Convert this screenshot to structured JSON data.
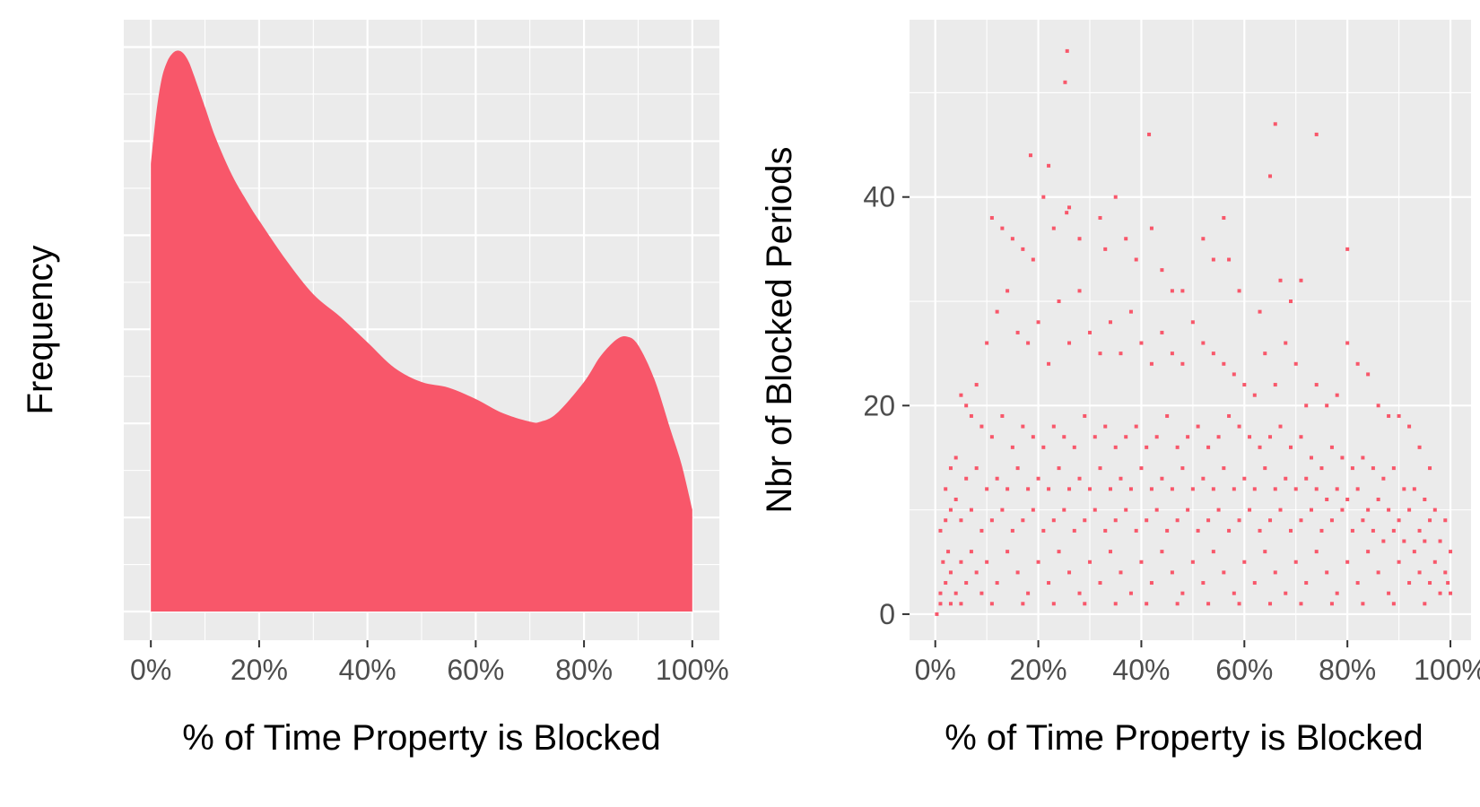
{
  "chart_data": [
    {
      "type": "area",
      "chart_kind": "density",
      "xlabel": "% of Time Property is Blocked",
      "ylabel": "Frequency",
      "xlim": [
        0,
        100
      ],
      "ylim": [
        0,
        1
      ],
      "grid": true,
      "y_tick_labels_shown": false,
      "x_ticks": [
        0,
        20,
        40,
        60,
        80,
        100
      ],
      "x_tick_labels": [
        "0%",
        "20%",
        "40%",
        "60%",
        "80%",
        "100%"
      ],
      "fill_color": "#F8576A",
      "panel_color": "#EBEBEB",
      "x": [
        0,
        1,
        2,
        3,
        4,
        5,
        6,
        7,
        8,
        10,
        12,
        15,
        18,
        20,
        25,
        30,
        35,
        40,
        45,
        50,
        55,
        60,
        65,
        70,
        72,
        75,
        80,
        83,
        86,
        88,
        90,
        93,
        96,
        98,
        100
      ],
      "y": [
        0.79,
        0.88,
        0.94,
        0.97,
        0.985,
        0.99,
        0.985,
        0.97,
        0.945,
        0.89,
        0.835,
        0.77,
        0.72,
        0.69,
        0.62,
        0.56,
        0.52,
        0.475,
        0.43,
        0.405,
        0.395,
        0.375,
        0.35,
        0.335,
        0.335,
        0.35,
        0.405,
        0.45,
        0.48,
        0.485,
        0.47,
        0.41,
        0.32,
        0.26,
        0.18
      ]
    },
    {
      "type": "scatter",
      "xlabel": "% of Time Property is Blocked",
      "ylabel": "Nbr of Blocked Periods",
      "xlim": [
        -5,
        104
      ],
      "ylim": [
        -2.5,
        57
      ],
      "grid": true,
      "x_ticks": [
        0,
        20,
        40,
        60,
        80,
        100
      ],
      "x_tick_labels": [
        "0%",
        "20%",
        "40%",
        "60%",
        "80%",
        "100%"
      ],
      "y_ticks": [
        0,
        20,
        40
      ],
      "y_tick_labels": [
        "0",
        "20",
        "40"
      ],
      "point_color": "#F8576A",
      "panel_color": "#EBEBEB",
      "points": [
        [
          0.3,
          0
        ],
        [
          25.6,
          54
        ],
        [
          25.2,
          51
        ],
        [
          22,
          43
        ],
        [
          18.5,
          44
        ],
        [
          21,
          40
        ],
        [
          26,
          39
        ],
        [
          25.5,
          38.5
        ],
        [
          35,
          40
        ],
        [
          41.5,
          46
        ],
        [
          65,
          42
        ],
        [
          66,
          47
        ],
        [
          74,
          46
        ],
        [
          80,
          35
        ],
        [
          11,
          38
        ],
        [
          13,
          37
        ],
        [
          15,
          36
        ],
        [
          17,
          35
        ],
        [
          19,
          34
        ],
        [
          23,
          37
        ],
        [
          28,
          36
        ],
        [
          32,
          38
        ],
        [
          33,
          35
        ],
        [
          37,
          36
        ],
        [
          39,
          34
        ],
        [
          42,
          37
        ],
        [
          44,
          33
        ],
        [
          46,
          31
        ],
        [
          48,
          31
        ],
        [
          52,
          36
        ],
        [
          54,
          34
        ],
        [
          56,
          38
        ],
        [
          57,
          34
        ],
        [
          59,
          31
        ],
        [
          63,
          29
        ],
        [
          67,
          32
        ],
        [
          69,
          30
        ],
        [
          71,
          32
        ],
        [
          10,
          26
        ],
        [
          12,
          29
        ],
        [
          14,
          31
        ],
        [
          16,
          27
        ],
        [
          18,
          26
        ],
        [
          20,
          28
        ],
        [
          22,
          24
        ],
        [
          24,
          30
        ],
        [
          26,
          26
        ],
        [
          28,
          31
        ],
        [
          30,
          27
        ],
        [
          32,
          25
        ],
        [
          34,
          28
        ],
        [
          36,
          25
        ],
        [
          38,
          29
        ],
        [
          40,
          26
        ],
        [
          42,
          24
        ],
        [
          44,
          27
        ],
        [
          46,
          25
        ],
        [
          48,
          24
        ],
        [
          50,
          28
        ],
        [
          52,
          26
        ],
        [
          54,
          25
        ],
        [
          56,
          24
        ],
        [
          58,
          23
        ],
        [
          60,
          22
        ],
        [
          62,
          21
        ],
        [
          64,
          25
        ],
        [
          66,
          22
        ],
        [
          68,
          26
        ],
        [
          70,
          24
        ],
        [
          72,
          20
        ],
        [
          74,
          22
        ],
        [
          76,
          20
        ],
        [
          78,
          21
        ],
        [
          80,
          26
        ],
        [
          82,
          24
        ],
        [
          84,
          23
        ],
        [
          86,
          20
        ],
        [
          88,
          19
        ],
        [
          90,
          19
        ],
        [
          92,
          18
        ],
        [
          94,
          16
        ],
        [
          96,
          14
        ],
        [
          5,
          21
        ],
        [
          6,
          20
        ],
        [
          7,
          19
        ],
        [
          8,
          22
        ],
        [
          9,
          18
        ],
        [
          11,
          17
        ],
        [
          13,
          19
        ],
        [
          15,
          16
        ],
        [
          17,
          18
        ],
        [
          19,
          17
        ],
        [
          21,
          16
        ],
        [
          23,
          18
        ],
        [
          25,
          17
        ],
        [
          27,
          16
        ],
        [
          29,
          19
        ],
        [
          31,
          17
        ],
        [
          33,
          18
        ],
        [
          35,
          16
        ],
        [
          37,
          17
        ],
        [
          39,
          18
        ],
        [
          41,
          16
        ],
        [
          43,
          17
        ],
        [
          45,
          19
        ],
        [
          47,
          16
        ],
        [
          49,
          17
        ],
        [
          51,
          18
        ],
        [
          53,
          16
        ],
        [
          55,
          17
        ],
        [
          57,
          19
        ],
        [
          59,
          18
        ],
        [
          61,
          17
        ],
        [
          63,
          16
        ],
        [
          65,
          17
        ],
        [
          67,
          18
        ],
        [
          69,
          16
        ],
        [
          71,
          17
        ],
        [
          73,
          15
        ],
        [
          75,
          14
        ],
        [
          77,
          16
        ],
        [
          79,
          15
        ],
        [
          81,
          14
        ],
        [
          83,
          15
        ],
        [
          85,
          14
        ],
        [
          87,
          13
        ],
        [
          89,
          14
        ],
        [
          91,
          12
        ],
        [
          93,
          12
        ],
        [
          95,
          11
        ],
        [
          97,
          10
        ],
        [
          99,
          9
        ],
        [
          2,
          12
        ],
        [
          3,
          14
        ],
        [
          4,
          15
        ],
        [
          6,
          13
        ],
        [
          8,
          14
        ],
        [
          10,
          12
        ],
        [
          12,
          13
        ],
        [
          14,
          12
        ],
        [
          16,
          14
        ],
        [
          18,
          12
        ],
        [
          20,
          13
        ],
        [
          22,
          12
        ],
        [
          24,
          14
        ],
        [
          26,
          12
        ],
        [
          28,
          13
        ],
        [
          30,
          12
        ],
        [
          32,
          14
        ],
        [
          34,
          12
        ],
        [
          36,
          13
        ],
        [
          38,
          12
        ],
        [
          40,
          14
        ],
        [
          42,
          12
        ],
        [
          44,
          13
        ],
        [
          46,
          12
        ],
        [
          48,
          14
        ],
        [
          50,
          12
        ],
        [
          52,
          13
        ],
        [
          54,
          12
        ],
        [
          56,
          14
        ],
        [
          58,
          12
        ],
        [
          60,
          13
        ],
        [
          62,
          12
        ],
        [
          64,
          14
        ],
        [
          66,
          12
        ],
        [
          68,
          13
        ],
        [
          70,
          12
        ],
        [
          72,
          13
        ],
        [
          74,
          12
        ],
        [
          76,
          11
        ],
        [
          78,
          12
        ],
        [
          80,
          11
        ],
        [
          82,
          12
        ],
        [
          84,
          10
        ],
        [
          86,
          11
        ],
        [
          88,
          10
        ],
        [
          90,
          9
        ],
        [
          92,
          10
        ],
        [
          94,
          8
        ],
        [
          96,
          9
        ],
        [
          98,
          7
        ],
        [
          100,
          6
        ],
        [
          1,
          8
        ],
        [
          2,
          9
        ],
        [
          3,
          10
        ],
        [
          4,
          11
        ],
        [
          5,
          9
        ],
        [
          7,
          10
        ],
        [
          9,
          8
        ],
        [
          11,
          9
        ],
        [
          13,
          10
        ],
        [
          15,
          8
        ],
        [
          17,
          9
        ],
        [
          19,
          10
        ],
        [
          21,
          8
        ],
        [
          23,
          9
        ],
        [
          25,
          10
        ],
        [
          27,
          8
        ],
        [
          29,
          9
        ],
        [
          31,
          10
        ],
        [
          33,
          8
        ],
        [
          35,
          9
        ],
        [
          37,
          10
        ],
        [
          39,
          8
        ],
        [
          41,
          9
        ],
        [
          43,
          10
        ],
        [
          45,
          8
        ],
        [
          47,
          9
        ],
        [
          49,
          10
        ],
        [
          51,
          8
        ],
        [
          53,
          9
        ],
        [
          55,
          10
        ],
        [
          57,
          8
        ],
        [
          59,
          9
        ],
        [
          61,
          10
        ],
        [
          63,
          8
        ],
        [
          65,
          9
        ],
        [
          67,
          10
        ],
        [
          69,
          8
        ],
        [
          71,
          9
        ],
        [
          73,
          10
        ],
        [
          75,
          8
        ],
        [
          77,
          9
        ],
        [
          79,
          10
        ],
        [
          81,
          8
        ],
        [
          83,
          9
        ],
        [
          85,
          8
        ],
        [
          87,
          7
        ],
        [
          89,
          8
        ],
        [
          91,
          7
        ],
        [
          93,
          6
        ],
        [
          95,
          7
        ],
        [
          97,
          5
        ],
        [
          99,
          4
        ],
        [
          1,
          2
        ],
        [
          1.5,
          5
        ],
        [
          2,
          3
        ],
        [
          2.5,
          6
        ],
        [
          3,
          4
        ],
        [
          4,
          2
        ],
        [
          5,
          5
        ],
        [
          6,
          3
        ],
        [
          7,
          6
        ],
        [
          8,
          4
        ],
        [
          9,
          2
        ],
        [
          10,
          5
        ],
        [
          12,
          3
        ],
        [
          14,
          6
        ],
        [
          16,
          4
        ],
        [
          18,
          2
        ],
        [
          20,
          5
        ],
        [
          22,
          3
        ],
        [
          24,
          6
        ],
        [
          26,
          4
        ],
        [
          28,
          2
        ],
        [
          30,
          5
        ],
        [
          32,
          3
        ],
        [
          34,
          6
        ],
        [
          36,
          4
        ],
        [
          38,
          2
        ],
        [
          40,
          5
        ],
        [
          42,
          3
        ],
        [
          44,
          6
        ],
        [
          46,
          4
        ],
        [
          48,
          2
        ],
        [
          50,
          5
        ],
        [
          52,
          3
        ],
        [
          54,
          6
        ],
        [
          56,
          4
        ],
        [
          58,
          2
        ],
        [
          60,
          5
        ],
        [
          62,
          3
        ],
        [
          64,
          6
        ],
        [
          66,
          4
        ],
        [
          68,
          2
        ],
        [
          70,
          5
        ],
        [
          72,
          3
        ],
        [
          74,
          6
        ],
        [
          76,
          4
        ],
        [
          78,
          2
        ],
        [
          80,
          5
        ],
        [
          82,
          3
        ],
        [
          84,
          6
        ],
        [
          86,
          4
        ],
        [
          88,
          2
        ],
        [
          90,
          5
        ],
        [
          92,
          3
        ],
        [
          94,
          4
        ],
        [
          96,
          3
        ],
        [
          98,
          2
        ],
        [
          99.5,
          3
        ],
        [
          100,
          2
        ],
        [
          1,
          1
        ],
        [
          3,
          1
        ],
        [
          5,
          1
        ],
        [
          11,
          1
        ],
        [
          17,
          1
        ],
        [
          23,
          1
        ],
        [
          29,
          1
        ],
        [
          35,
          1
        ],
        [
          41,
          1
        ],
        [
          47,
          1
        ],
        [
          53,
          1
        ],
        [
          59,
          1
        ],
        [
          65,
          1
        ],
        [
          71,
          1
        ],
        [
          77,
          1
        ],
        [
          83,
          1
        ],
        [
          89,
          1
        ],
        [
          95,
          1
        ]
      ]
    }
  ]
}
